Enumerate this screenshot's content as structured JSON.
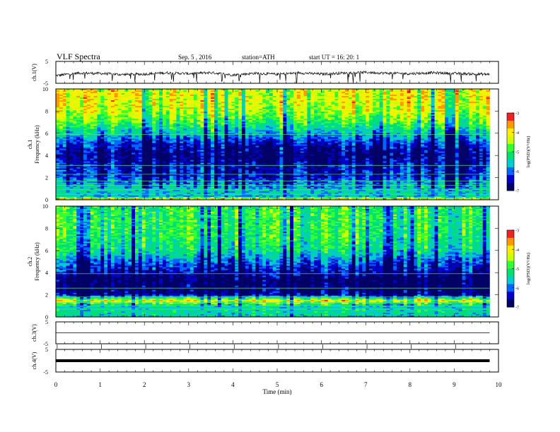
{
  "header": {
    "title": "VLF  Spectra",
    "date": "Sep. 5  , 2016",
    "station": "station=ATH",
    "start_ut": "start  UT  =    16: 20: 1"
  },
  "colors": {
    "colormap": [
      "#000066",
      "#0000cc",
      "#0066ff",
      "#00cccc",
      "#00e070",
      "#33ff33",
      "#ccff00",
      "#ffee00",
      "#ff9900",
      "#ee2222",
      "#ffffff"
    ],
    "frame": "#000000",
    "trace": "#000000"
  },
  "chart_data": [
    {
      "type": "line",
      "panel": "ch1-waveform",
      "ylabel": "ch.1(V)",
      "ylim": [
        -5,
        5
      ],
      "yticks": [
        "5",
        "-5"
      ],
      "xlim": [
        0,
        10
      ],
      "series": [
        {
          "x": [
            0,
            0.5,
            1,
            1.5,
            2,
            2.5,
            3,
            3.5,
            4,
            4.5,
            5,
            5.5,
            6,
            6.5,
            7,
            7.5,
            8,
            8.5,
            9,
            9.5,
            9.8
          ],
          "y": [
            -1.5,
            -0.3,
            -0.5,
            -1.0,
            -0.8,
            -0.2,
            -0.6,
            -0.1,
            -1.2,
            -0.4,
            -0.9,
            -0.2,
            -0.8,
            -0.3,
            0.0,
            -0.4,
            -0.6,
            -0.2,
            -0.5,
            -0.8,
            -0.9
          ]
        }
      ]
    },
    {
      "type": "heatmap",
      "panel": "ch1-spectrogram",
      "ylabel": "ch.1\nFrequency  (kHz)",
      "ylim": [
        0,
        10
      ],
      "yticks": [
        "0",
        "2",
        "4",
        "6",
        "8",
        "10"
      ],
      "xlim": [
        0,
        10
      ],
      "x_extent_min": 9.8,
      "colorbar": {
        "label": "log(PSD)(V²/Hz)",
        "range": [
          -7,
          -3
        ],
        "ticks": [
          "-3",
          "-4",
          "-5",
          "-6",
          "-7"
        ]
      },
      "psd_profile": {
        "freq_khz": [
          0,
          0.3,
          0.8,
          1.5,
          2.2,
          3.0,
          4.0,
          5.0,
          6.0,
          7.0,
          8.0,
          9.0,
          10.0
        ],
        "log_psd": [
          -3.2,
          -5.6,
          -5.5,
          -5.8,
          -6.3,
          -6.3,
          -6.7,
          -6.3,
          -5.5,
          -4.8,
          -4.3,
          -4.1,
          -4.1
        ]
      }
    },
    {
      "type": "heatmap",
      "panel": "ch2-spectrogram",
      "ylabel": "ch.2\nFrequency  (kHz)",
      "ylim": [
        0,
        10
      ],
      "yticks": [
        "0",
        "2",
        "4",
        "6",
        "8",
        "10"
      ],
      "xlim": [
        0,
        10
      ],
      "x_extent_min": 9.8,
      "colorbar": {
        "label": "log(PSD)(V²/Hz)",
        "range": [
          -7,
          -3
        ],
        "ticks": [
          "-3",
          "-4",
          "-5",
          "-6",
          "-7"
        ]
      },
      "psd_profile": {
        "freq_khz": [
          0,
          0.5,
          1.0,
          1.5,
          2.0,
          2.5,
          3.0,
          3.5,
          4.0,
          5.0,
          6.0,
          7.0,
          8.0,
          9.0,
          10.0
        ],
        "log_psd": [
          -5.5,
          -5.3,
          -5.5,
          -4.0,
          -6.6,
          -6.8,
          -6.9,
          -6.9,
          -6.5,
          -6.0,
          -5.3,
          -5.1,
          -5.0,
          -5.0,
          -5.0
        ]
      }
    },
    {
      "type": "line",
      "panel": "ch3-waveform",
      "ylabel": "ch.3(V)",
      "ylim": [
        -5,
        5
      ],
      "yticks": [
        "5",
        "-5"
      ],
      "xlim": [
        0,
        10
      ],
      "series": [
        {
          "x": [
            0,
            9.8
          ],
          "y": [
            0,
            0
          ]
        }
      ]
    },
    {
      "type": "line",
      "panel": "ch4-waveform",
      "ylabel": "ch.4(V)",
      "ylim": [
        -5,
        5
      ],
      "yticks": [
        "5",
        "-5"
      ],
      "xlim": [
        0,
        10
      ],
      "series": [
        {
          "x": [
            0,
            9.8
          ],
          "y": [
            0,
            0
          ]
        }
      ]
    }
  ],
  "xaxis": {
    "label": "Time  (min)",
    "ticks": [
      "0",
      "1",
      "2",
      "3",
      "4",
      "5",
      "6",
      "7",
      "8",
      "9",
      "10"
    ]
  }
}
